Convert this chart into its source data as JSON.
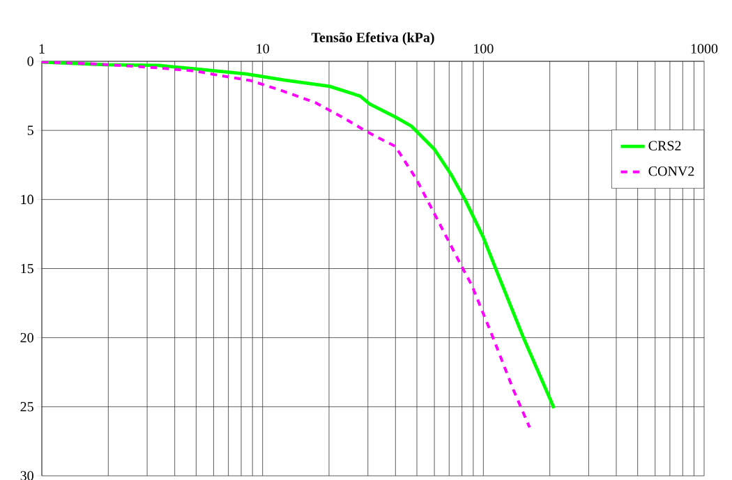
{
  "chart_data": {
    "type": "line",
    "xlabel": "Tensão Efetiva (kPa)",
    "log": "x",
    "xlim": [
      1,
      1000
    ],
    "xticks": [
      1,
      10,
      100,
      1000
    ],
    "ylim": [
      30,
      0
    ],
    "yticks": [
      0,
      5,
      10,
      15,
      20,
      25,
      30
    ],
    "grid": true,
    "legend": "right",
    "series": [
      {
        "name": "CRS2",
        "color": "#00ff00",
        "line_style": "solid",
        "x": [
          1,
          1.92,
          3.37,
          4.95,
          8.42,
          12.5,
          20.1,
          27.7,
          30.5,
          39.9,
          47.2,
          59.9,
          71.3,
          82.6,
          99.7,
          115,
          151,
          209
        ],
        "values": [
          0.05,
          0.25,
          0.3,
          0.55,
          0.91,
          1.36,
          1.81,
          2.52,
          3.08,
          4.03,
          4.69,
          6.35,
          8.17,
          10.0,
          12.7,
          15.2,
          19.9,
          25.1
        ]
      },
      {
        "name": "CONV2",
        "color": "#ff00ff",
        "line_style": "dashed",
        "x": [
          1,
          1.79,
          3.2,
          4.95,
          6.0,
          8.85,
          12.1,
          17.4,
          23.9,
          28.3,
          33.6,
          39.9,
          49.6,
          59.9,
          80.1,
          88.6,
          110,
          137,
          162
        ],
        "values": [
          0.05,
          0.2,
          0.45,
          0.7,
          0.95,
          1.4,
          2.1,
          3.0,
          4.2,
          4.9,
          5.55,
          6.15,
          8.5,
          11.0,
          14.9,
          16.2,
          19.9,
          23.8,
          26.5
        ]
      }
    ]
  }
}
